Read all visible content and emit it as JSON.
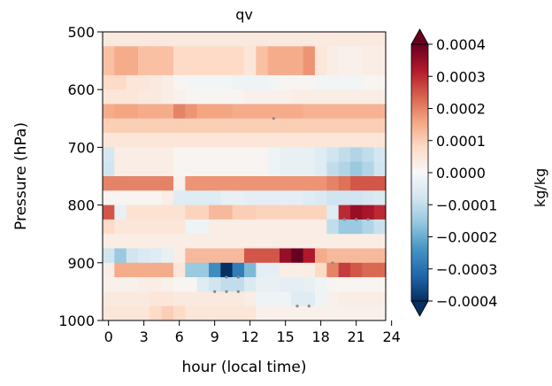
{
  "chart_data": {
    "type": "heatmap",
    "title": "qv",
    "xlabel": "hour (local time)",
    "ylabel": "Pressure (hPa)",
    "colorbar_label": "kg/kg",
    "xlim": [
      -0.5,
      23.5
    ],
    "ylim": [
      1000,
      500
    ],
    "x_ticks": [
      0,
      3,
      6,
      9,
      12,
      15,
      18,
      21,
      24
    ],
    "y_ticks": [
      500,
      600,
      700,
      800,
      900,
      1000
    ],
    "colorbar_ticks": [
      0.0004,
      0.0003,
      0.0002,
      0.0001,
      0.0,
      -0.0001,
      -0.0002,
      -0.0003,
      -0.0004
    ],
    "colorbar_tick_labels": [
      "0.0004",
      "0.0003",
      "0.0002",
      "0.0001",
      "0.0000",
      "−0.0001",
      "−0.0002",
      "−0.0003",
      "−0.0004"
    ],
    "colorbar_range": [
      -0.0004,
      0.0004
    ],
    "colormap": "RdBu_r",
    "hours": [
      0,
      1,
      2,
      3,
      4,
      5,
      6,
      7,
      8,
      9,
      10,
      11,
      12,
      13,
      14,
      15,
      16,
      17,
      18,
      19,
      20,
      21,
      22,
      23
    ],
    "pressure_levels": [
      500,
      525,
      550,
      575,
      600,
      625,
      650,
      675,
      700,
      725,
      750,
      775,
      800,
      825,
      850,
      875,
      900,
      925,
      950,
      975,
      1000
    ],
    "values_1e4": [
      [
        0.4,
        0.4,
        0.4,
        0.4,
        0.4,
        0.4,
        0.4,
        0.4,
        0.4,
        0.4,
        0.4,
        0.4,
        0.4,
        0.4,
        0.4,
        0.4,
        0.4,
        0.4,
        0.4,
        0.4,
        0.4,
        0.4,
        0.4,
        0.4
      ],
      [
        1.2,
        1.5,
        1.5,
        1.2,
        1.2,
        1.2,
        0.8,
        0.8,
        0.8,
        0.8,
        0.8,
        0.8,
        0.5,
        1.2,
        1.5,
        1.5,
        1.5,
        1.8,
        0.5,
        0.3,
        0.2,
        0.2,
        0.3,
        0.3
      ],
      [
        1.2,
        1.5,
        1.5,
        1.2,
        1.2,
        1.2,
        0.8,
        0.8,
        0.8,
        0.8,
        0.8,
        0.8,
        0.5,
        1.2,
        1.5,
        1.5,
        1.5,
        1.8,
        0.5,
        0.3,
        0.2,
        0.2,
        0.3,
        0.3
      ],
      [
        0.8,
        0.8,
        0.5,
        0.5,
        0.4,
        0.3,
        0.1,
        -0.1,
        -0.1,
        -0.1,
        -0.1,
        -0.2,
        -0.2,
        -0.2,
        -0.1,
        0.1,
        0.1,
        0.1,
        -0.1,
        -0.1,
        -0.1,
        -0.1,
        0.1,
        0.1
      ],
      [
        0.5,
        0.5,
        0.5,
        0.4,
        0.4,
        0.3,
        0.2,
        0.1,
        0.1,
        0.1,
        0.1,
        0.1,
        0.2,
        0.2,
        0.2,
        0.2,
        0.3,
        0.3,
        0.3,
        0.3,
        0.3,
        0.3,
        0.3,
        0.3
      ],
      [
        1.5,
        1.6,
        1.6,
        1.5,
        1.5,
        1.5,
        2.0,
        1.8,
        1.6,
        1.6,
        1.6,
        1.5,
        1.5,
        1.5,
        1.5,
        1.5,
        1.5,
        1.4,
        1.4,
        1.4,
        1.4,
        1.4,
        1.4,
        1.4
      ],
      [
        1.0,
        1.0,
        1.0,
        1.0,
        1.0,
        1.0,
        1.0,
        1.0,
        1.0,
        1.0,
        1.0,
        1.0,
        1.0,
        1.0,
        1.0,
        1.0,
        1.0,
        1.0,
        1.0,
        1.0,
        1.0,
        1.0,
        1.0,
        1.0
      ],
      [
        0.5,
        0.5,
        0.5,
        0.5,
        0.5,
        0.5,
        0.5,
        0.5,
        0.5,
        0.5,
        0.5,
        0.5,
        0.5,
        0.5,
        0.5,
        0.5,
        0.5,
        0.5,
        0.5,
        0.5,
        0.5,
        0.5,
        0.5,
        0.5
      ],
      [
        -0.7,
        0.3,
        0.3,
        0.3,
        0.3,
        0.3,
        0.1,
        0.1,
        0.1,
        0.1,
        0.1,
        0.1,
        0.1,
        0.1,
        -0.2,
        -0.3,
        -0.3,
        -0.3,
        -0.5,
        -0.8,
        -1.0,
        -1.2,
        -1.0,
        -0.7
      ],
      [
        -0.8,
        0.3,
        0.3,
        0.3,
        0.3,
        0.3,
        0.1,
        0.1,
        0.1,
        0.1,
        0.1,
        0.1,
        0.1,
        0.1,
        -0.2,
        -0.3,
        -0.3,
        -0.3,
        -0.5,
        -1.0,
        -1.2,
        -1.5,
        -1.2,
        -0.8
      ],
      [
        2.0,
        2.0,
        2.0,
        2.0,
        2.0,
        2.0,
        0.2,
        1.8,
        1.8,
        1.8,
        1.8,
        1.8,
        1.8,
        1.8,
        1.8,
        1.8,
        1.8,
        1.8,
        1.8,
        2.0,
        2.2,
        2.5,
        2.5,
        2.5
      ],
      [
        0.1,
        0.1,
        0.1,
        0.1,
        0.1,
        0.3,
        -0.5,
        -0.5,
        -0.5,
        -0.5,
        -0.3,
        -0.3,
        -0.4,
        -0.4,
        -0.4,
        -0.4,
        -0.4,
        -0.5,
        -0.6,
        -0.8,
        -0.8,
        -0.8,
        -0.7,
        -0.6
      ],
      [
        2.5,
        -0.3,
        0.6,
        0.6,
        0.6,
        0.6,
        0.6,
        0.9,
        0.9,
        1.3,
        1.3,
        1.0,
        1.0,
        0.9,
        0.9,
        0.9,
        0.9,
        0.9,
        0.9,
        -0.5,
        3.0,
        3.5,
        3.3,
        3.0
      ],
      [
        0.8,
        0.5,
        0.5,
        0.5,
        0.5,
        0.5,
        0.5,
        -0.2,
        -0.2,
        0.3,
        0.3,
        0.3,
        0.3,
        0.3,
        0.3,
        0.3,
        0.3,
        0.3,
        0.3,
        -1.0,
        -1.5,
        -1.5,
        -1.2,
        -0.9
      ],
      [
        0.3,
        0.3,
        0.3,
        0.3,
        0.3,
        0.3,
        0.3,
        0.3,
        0.3,
        0.3,
        0.3,
        0.3,
        0.3,
        0.3,
        0.3,
        0.3,
        0.3,
        0.3,
        0.3,
        0.3,
        0.3,
        0.3,
        0.3,
        0.3
      ],
      [
        -0.8,
        -1.5,
        -0.8,
        -0.6,
        -0.5,
        -0.3,
        0.3,
        1.3,
        1.3,
        1.3,
        1.3,
        1.3,
        2.5,
        2.5,
        2.5,
        3.5,
        4.0,
        3.2,
        1.5,
        1.3,
        1.3,
        1.3,
        1.3,
        1.3
      ],
      [
        0.3,
        1.5,
        1.5,
        1.5,
        1.5,
        1.5,
        0.5,
        -1.5,
        -1.5,
        -2.5,
        -4.0,
        -2.8,
        -1.8,
        -0.4,
        -0.4,
        0.3,
        0.3,
        0.3,
        0.8,
        2.0,
        2.8,
        2.5,
        2.3,
        2.3
      ],
      [
        0.2,
        0.2,
        0.2,
        0.3,
        0.3,
        0.2,
        0.1,
        0.1,
        -0.5,
        -0.8,
        -1.0,
        -1.0,
        -0.6,
        -0.3,
        -0.3,
        -0.4,
        -0.4,
        -0.3,
        -0.2,
        0.1,
        0.1,
        0.1,
        0.1,
        0.1
      ],
      [
        0.4,
        0.4,
        0.4,
        0.4,
        0.5,
        0.5,
        0.4,
        0.4,
        0.4,
        0.4,
        0.4,
        0.4,
        0.3,
        -0.2,
        -0.2,
        -0.2,
        -0.5,
        -0.5,
        -0.2,
        0.2,
        0.3,
        0.3,
        0.3,
        0.3
      ],
      [
        0.5,
        0.5,
        0.5,
        0.5,
        0.8,
        1.0,
        0.8,
        0.5,
        0.5,
        0.5,
        0.5,
        0.5,
        0.5,
        0.2,
        0.2,
        0.2,
        0.2,
        0.2,
        0.2,
        0.2,
        0.2,
        0.2,
        0.2,
        0.2
      ]
    ],
    "significance_markers": [
      {
        "hour": 14,
        "pressure": 650
      },
      {
        "hour": 20,
        "pressure": 825
      },
      {
        "hour": 21,
        "pressure": 825
      },
      {
        "hour": 22,
        "pressure": 825
      },
      {
        "hour": 19,
        "pressure": 900
      },
      {
        "hour": 10,
        "pressure": 925
      },
      {
        "hour": 11,
        "pressure": 925
      },
      {
        "hour": 9,
        "pressure": 950
      },
      {
        "hour": 10,
        "pressure": 950
      },
      {
        "hour": 11,
        "pressure": 950
      },
      {
        "hour": 16,
        "pressure": 975
      },
      {
        "hour": 17,
        "pressure": 975
      }
    ]
  }
}
